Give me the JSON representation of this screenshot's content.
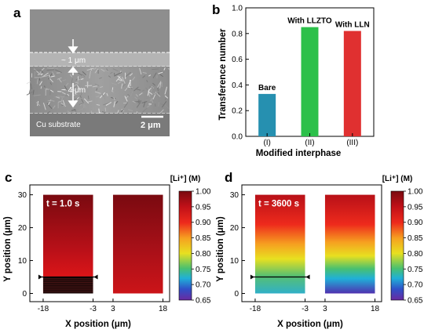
{
  "panel_a": {
    "letter": "a",
    "labels": [
      "~ 1 μm",
      "~ 4 μm",
      "Cu substrate"
    ],
    "scale_bar": "2 μm"
  },
  "chart_data": [
    {
      "type": "bar",
      "panel": "b",
      "categories": [
        "(I)",
        "(II)",
        "(III)"
      ],
      "values": [
        0.33,
        0.85,
        0.82
      ],
      "bar_labels": [
        "Bare",
        "With LLZTO",
        "With LLN"
      ],
      "colors": [
        "#2690b0",
        "#2cc04a",
        "#e03030"
      ],
      "xlabel": "Modified interphase",
      "ylabel": "Transference number",
      "ylim": [
        0.0,
        1.0
      ],
      "yticks": [
        "0.0",
        "0.2",
        "0.4",
        "0.6",
        "0.8",
        "1.0"
      ]
    },
    {
      "type": "heatmap",
      "panel": "c",
      "annotation": "t = 1.0 s",
      "xlabel": "X position (μm)",
      "ylabel": "Y position (μm)",
      "xticks": [
        "-18",
        "-3",
        "3",
        "18"
      ],
      "yticks": [
        "0",
        "10",
        "20",
        "30"
      ],
      "colorbar_title": "[Li⁺] (M)",
      "colorbar_ticks": [
        "1.00",
        "0.95",
        "0.90",
        "0.85",
        "0.80",
        "0.75",
        "0.70",
        "0.65"
      ],
      "clim": [
        0.65,
        1.0
      ]
    },
    {
      "type": "heatmap",
      "panel": "d",
      "annotation": "t = 3600 s",
      "xlabel": "X position (μm)",
      "ylabel": "Y position (μm)",
      "xticks": [
        "-18",
        "-3",
        "3",
        "18"
      ],
      "yticks": [
        "0",
        "10",
        "20",
        "30"
      ],
      "colorbar_title": "[Li⁺] (M)",
      "colorbar_ticks": [
        "1.00",
        "0.95",
        "0.90",
        "0.85",
        "0.80",
        "0.75",
        "0.70",
        "0.65"
      ],
      "clim": [
        0.65,
        1.0
      ]
    }
  ],
  "letters": {
    "b": "b",
    "c": "c",
    "d": "d"
  }
}
